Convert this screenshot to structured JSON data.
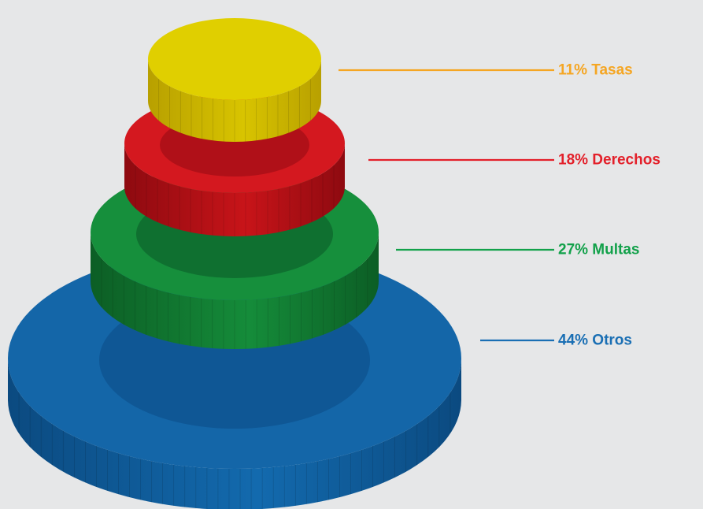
{
  "chart_data": {
    "type": "pie",
    "style": "stacked-3d-discs",
    "categories": [
      "Tasas",
      "Derechos",
      "Multas",
      "Otros"
    ],
    "values": [
      11,
      18,
      27,
      44
    ],
    "unit": "%",
    "labels": [
      "11% Tasas",
      "18% Derechos",
      "27% Multas",
      "44% Otros"
    ],
    "colors": [
      "#f5a623",
      "#e3202a",
      "#12a14a",
      "#1a6fb4"
    ],
    "disc_colors": {
      "Tasas": {
        "top": "#e0cf00",
        "inner": "#e0cf00",
        "side_dark": "#b8a000",
        "side_light": "#d8c400"
      },
      "Derechos": {
        "top": "#d4181f",
        "inner": "#b01018",
        "side_dark": "#8e0a10",
        "side_light": "#c81419"
      },
      "Multas": {
        "top": "#168f3c",
        "inner": "#0f7030",
        "side_dark": "#0c5e25",
        "side_light": "#158c3a"
      },
      "Otros": {
        "top": "#1466a8",
        "inner": "#0f5795",
        "side_dark": "#0b4a80",
        "side_light": "#136aae"
      }
    },
    "legend_placement": "right",
    "title": "",
    "xlabel": "",
    "ylabel": ""
  }
}
